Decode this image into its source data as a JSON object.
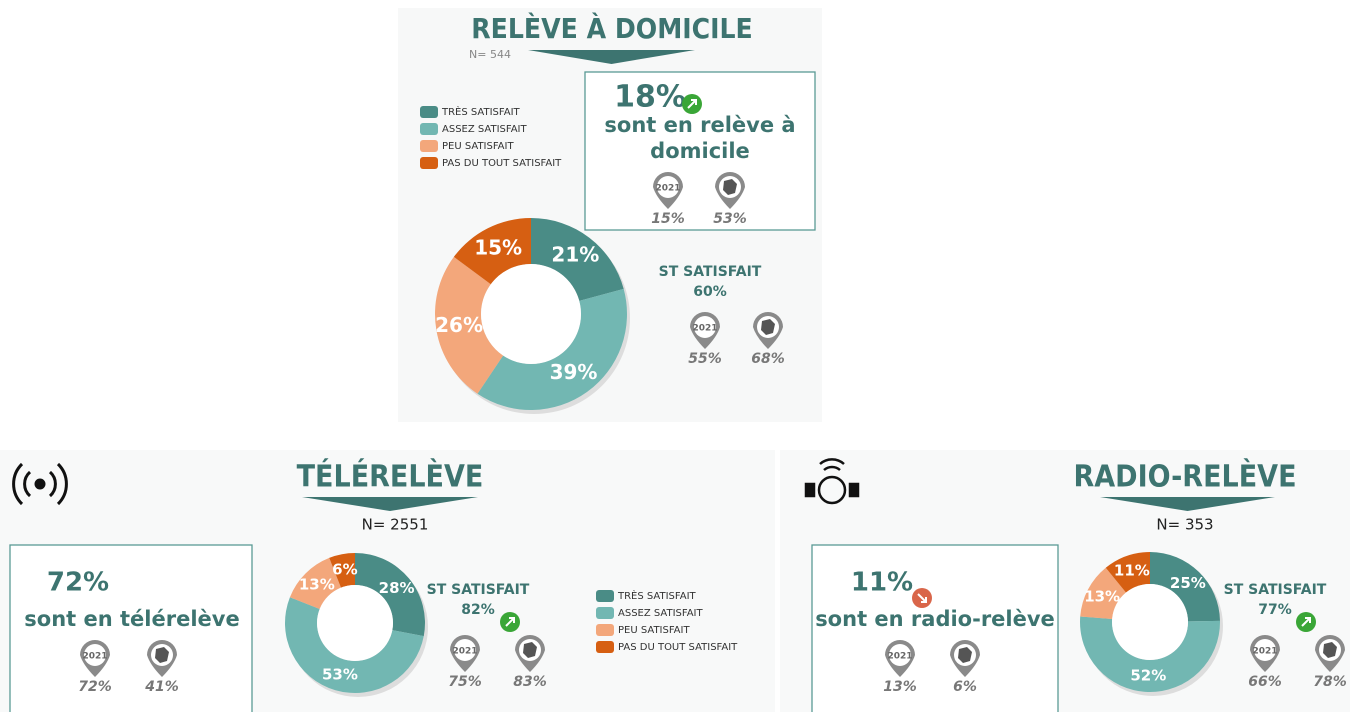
{
  "legend": {
    "names": [
      "TRÈS SATISFAIT",
      "ASSEZ SATISFAIT",
      "PEU SATISFAIT",
      "PAS DU TOUT SATISFAIT"
    ],
    "colors": [
      "#4a8c86",
      "#72b7b2",
      "#f3a77b",
      "#d65f12"
    ]
  },
  "year_label": "2021",
  "st_label": "ST SATISFAIT",
  "panels": [
    {
      "title": "RELÈVE À DOMICILE",
      "n": "N= 544",
      "share": "18%",
      "share_trend": "up",
      "share_text": [
        "sont en relève à",
        "domicile"
      ],
      "share_2021": "15%",
      "share_france": "53%",
      "chart_data": {
        "type": "pie",
        "values": [
          21,
          39,
          26,
          15
        ],
        "value_labels": [
          "21%",
          "39%",
          "26%",
          "15%"
        ]
      },
      "st_value": "60%",
      "st_2021": "55%",
      "st_france": "68%"
    },
    {
      "title": "TÉLÉRELÈVE",
      "n": "N= 2551",
      "share": "72%",
      "share_text": [
        "sont en télérelève"
      ],
      "share_2021": "72%",
      "share_france": "41%",
      "chart_data": {
        "type": "pie",
        "values": [
          28,
          53,
          13,
          6
        ],
        "value_labels": [
          "28%",
          "53%",
          "13%",
          "6%"
        ]
      },
      "st_value": "82%",
      "st_trend": "up",
      "st_2021": "75%",
      "st_france": "83%"
    },
    {
      "title": "RADIO-RELÈVE",
      "n": "N= 353",
      "share": "11%",
      "share_trend": "down",
      "share_text": [
        "sont en radio-relève"
      ],
      "share_2021": "13%",
      "share_france": "6%",
      "chart_data": {
        "type": "pie",
        "values": [
          25,
          52,
          13,
          11
        ],
        "value_labels": [
          "25%",
          "52%",
          "13%",
          "11%"
        ]
      },
      "st_value": "77%",
      "st_trend": "up",
      "st_2021": "66%",
      "st_france": "78%"
    }
  ]
}
